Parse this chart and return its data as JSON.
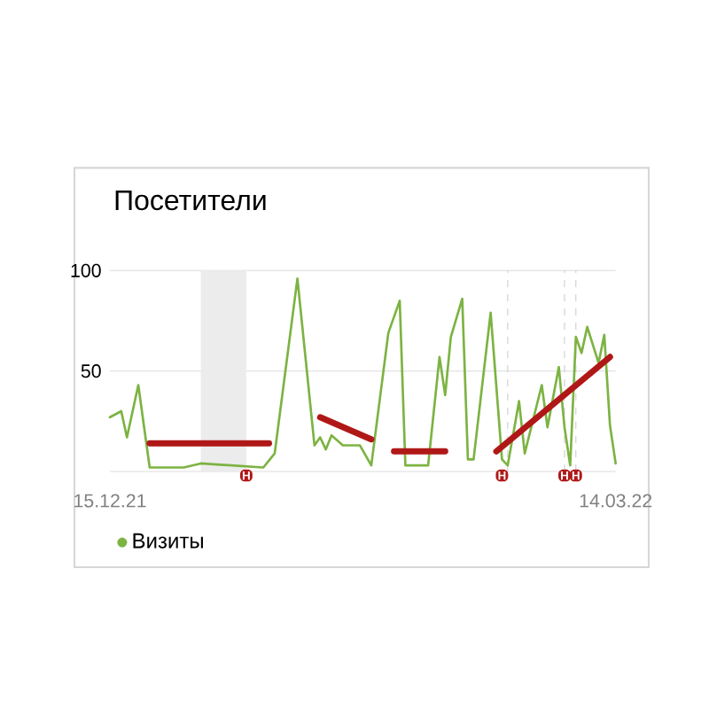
{
  "chart_data": {
    "type": "line",
    "title": "Посетители",
    "xlim": [
      "2021-12-15",
      "2022-03-14"
    ],
    "xticks": [
      {
        "value": "2021-12-15",
        "label": "15.12.21"
      },
      {
        "value": "2022-03-14",
        "label": "14.03.22"
      }
    ],
    "ylim": [
      0,
      100
    ],
    "yticks": [
      {
        "value": 0,
        "label": null
      },
      50,
      100
    ],
    "grid": "y",
    "legend": "bottom left",
    "marker": "none",
    "line_style": "solid",
    "series": [
      {
        "name": "Визиты",
        "color": "#7cb342",
        "x": [
          "2021-12-15",
          "2021-12-17",
          "2021-12-18",
          "2021-12-20",
          "2021-12-22",
          "2021-12-28",
          "2021-12-31",
          "2022-01-11",
          "2022-01-13",
          "2022-01-17",
          "2022-01-20",
          "2022-01-21",
          "2022-01-22",
          "2022-01-23",
          "2022-01-25",
          "2022-01-28",
          "2022-01-30",
          "2022-02-02",
          "2022-02-04",
          "2022-02-05",
          "2022-02-09",
          "2022-02-11",
          "2022-02-12",
          "2022-02-13",
          "2022-02-15",
          "2022-02-16",
          "2022-02-17",
          "2022-02-20",
          "2022-02-22",
          "2022-02-23",
          "2022-02-25",
          "2022-02-26",
          "2022-03-01",
          "2022-03-02",
          "2022-03-04",
          "2022-03-05",
          "2022-03-06",
          "2022-03-07",
          "2022-03-08",
          "2022-03-09",
          "2022-03-11",
          "2022-03-12",
          "2022-03-13",
          "2022-03-14"
        ],
        "values": [
          27,
          30,
          17,
          43,
          2,
          2,
          4,
          2,
          9,
          96,
          13,
          17,
          11,
          18,
          13,
          13,
          3,
          69,
          85,
          3,
          3,
          57,
          38,
          67,
          86,
          6,
          6,
          79,
          6,
          3,
          35,
          9,
          43,
          22,
          52,
          22,
          3,
          67,
          59,
          72,
          54,
          68,
          23,
          4
        ]
      },
      {
        "color": "#b01818",
        "x": [
          "2021-12-22",
          "2022-01-12"
        ],
        "values": [
          14,
          14
        ]
      },
      {
        "color": "#b01818",
        "x": [
          "2022-01-21",
          "2022-01-30"
        ],
        "values": [
          27,
          16
        ]
      },
      {
        "color": "#b01818",
        "x": [
          "2022-02-03",
          "2022-02-12"
        ],
        "values": [
          10,
          10
        ]
      },
      {
        "color": "#b01818",
        "x": [
          "2022-02-21",
          "2022-03-13"
        ],
        "values": [
          10,
          57
        ]
      }
    ],
    "ref_lines": [
      {
        "axis": "x",
        "value": "2022-02-23",
        "color": "#cccccc",
        "line_style": "dashed"
      },
      {
        "axis": "x",
        "value": "2022-03-05",
        "color": "#cccccc",
        "line_style": "dashed"
      },
      {
        "axis": "x",
        "value": "2022-03-07",
        "color": "#cccccc",
        "line_style": "dashed"
      }
    ],
    "bands": [
      {
        "axis": "x",
        "from": "2021-12-31",
        "to": "2022-01-08",
        "color": "#ececec"
      }
    ],
    "annotations": [
      {
        "text": "H",
        "x": "2022-01-08",
        "y": 0
      },
      {
        "text": "H",
        "x": "2022-02-22",
        "y": 0
      },
      {
        "text": "H",
        "x": "2022-03-05",
        "y": 0
      },
      {
        "text": "H",
        "x": "2022-03-07",
        "y": 0
      }
    ]
  }
}
